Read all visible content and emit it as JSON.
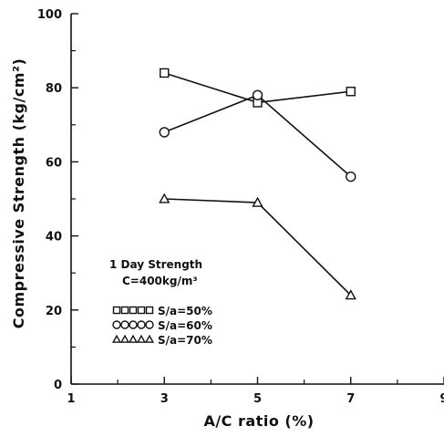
{
  "chart_data": {
    "type": "line",
    "title": "",
    "xlabel": "A/C ratio (%)",
    "ylabel": "Compressive Strength (kg/cm²)",
    "xlim": [
      1,
      9
    ],
    "ylim": [
      0,
      100
    ],
    "x_ticks": [
      1,
      3,
      5,
      7,
      9
    ],
    "x_tick_labels": [
      "1",
      "3",
      "5",
      "7",
      "9"
    ],
    "y_ticks": [
      0,
      20,
      40,
      60,
      80,
      100
    ],
    "y_tick_labels": [
      "0",
      "20",
      "40",
      "60",
      "80",
      "100"
    ],
    "grid": false,
    "legend_position": "lower-left",
    "annotation": {
      "line1": "1 Day Strength",
      "line2": "C=400kg/m³"
    },
    "series": [
      {
        "name": "S/a=50%",
        "legend_label": "S/a=50%",
        "marker": "square",
        "x": [
          3,
          5,
          7
        ],
        "values": [
          84,
          76,
          79
        ]
      },
      {
        "name": "S/a=60%",
        "legend_label": "S/a=60%",
        "marker": "circle",
        "x": [
          3,
          5,
          7
        ],
        "values": [
          68,
          78,
          56
        ]
      },
      {
        "name": "S/a=70%",
        "legend_label": "S/a=70%",
        "marker": "triangle",
        "x": [
          3,
          5,
          7
        ],
        "values": [
          50,
          49,
          24
        ]
      }
    ]
  }
}
